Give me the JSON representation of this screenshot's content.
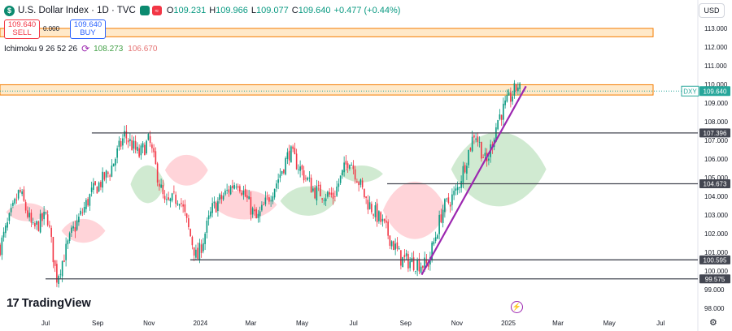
{
  "header": {
    "symbol": "U.S. Dollar Index · 1D · TVC",
    "logo_letter": "$",
    "open_label": "O",
    "open": "109.231",
    "high_label": "H",
    "high": "109.966",
    "low_label": "L",
    "low": "109.077",
    "close_label": "C",
    "close": "109.640",
    "change": "+0.477 (+0.44%)"
  },
  "trade": {
    "sell_price": "109.640",
    "sell_label": "SELL",
    "spread": "0.000",
    "buy_price": "109.640",
    "buy_label": "BUY"
  },
  "indicator": {
    "name": "Ichimoku 9 26 52 26",
    "value_a": "108.273",
    "value_b": "106.670",
    "icon": "cycle-icon"
  },
  "currency_button": "USD",
  "brand": {
    "name": "TradingView",
    "mark": "17"
  },
  "colors": {
    "up": "#089981",
    "down": "#f23645",
    "cloud_up": "#c8e6c9",
    "cloud_down": "#ffcdd2",
    "zone_fill": "#ffe0b2",
    "zone_border": "#f57c00",
    "trendline": "#9c27b0",
    "level_line": "#434651",
    "last_price": "#26a69a"
  },
  "chart_data": {
    "type": "candlestick",
    "title": "U.S. Dollar Index",
    "ylim": [
      97.4,
      114.4
    ],
    "y_ticks": [
      "113.000",
      "112.000",
      "111.000",
      "110.000",
      "109.000",
      "108.000",
      "107.000",
      "106.000",
      "105.000",
      "104.000",
      "103.000",
      "102.000",
      "101.000",
      "100.000",
      "99.000",
      "98.000"
    ],
    "x_ticks": [
      {
        "label": "Jul",
        "date": "2023-07-01"
      },
      {
        "label": "Sep",
        "date": "2023-09-01"
      },
      {
        "label": "Nov",
        "date": "2023-11-01"
      },
      {
        "label": "2024",
        "date": "2024-01-01"
      },
      {
        "label": "Mar",
        "date": "2024-03-01"
      },
      {
        "label": "May",
        "date": "2024-05-01"
      },
      {
        "label": "Jul",
        "date": "2024-07-01"
      },
      {
        "label": "Sep",
        "date": "2024-09-01"
      },
      {
        "label": "Nov",
        "date": "2024-11-01"
      },
      {
        "label": "2025",
        "date": "2025-01-01"
      },
      {
        "label": "Mar",
        "date": "2025-03-01"
      },
      {
        "label": "May",
        "date": "2025-05-01"
      },
      {
        "label": "Jul",
        "date": "2025-07-01"
      }
    ],
    "close_path": [
      [
        "2023-05-08",
        101.3
      ],
      [
        "2023-05-31",
        104.3
      ],
      [
        "2023-06-16",
        102.2
      ],
      [
        "2023-07-03",
        103.0
      ],
      [
        "2023-07-14",
        99.6
      ],
      [
        "2023-08-01",
        102.0
      ],
      [
        "2023-08-25",
        104.2
      ],
      [
        "2023-09-15",
        105.3
      ],
      [
        "2023-10-03",
        107.3
      ],
      [
        "2023-10-20",
        106.2
      ],
      [
        "2023-11-01",
        107.0
      ],
      [
        "2023-11-20",
        103.5
      ],
      [
        "2023-12-07",
        104.0
      ],
      [
        "2023-12-28",
        100.6
      ],
      [
        "2024-01-15",
        103.3
      ],
      [
        "2024-02-14",
        104.9
      ],
      [
        "2024-03-08",
        102.7
      ],
      [
        "2024-04-01",
        104.8
      ],
      [
        "2024-04-16",
        106.4
      ],
      [
        "2024-05-15",
        104.3
      ],
      [
        "2024-06-07",
        104.0
      ],
      [
        "2024-06-26",
        106.1
      ],
      [
        "2024-07-16",
        103.8
      ],
      [
        "2024-08-05",
        102.5
      ],
      [
        "2024-08-27",
        100.6
      ],
      [
        "2024-09-27",
        100.3
      ],
      [
        "2024-10-15",
        103.3
      ],
      [
        "2024-11-01",
        104.3
      ],
      [
        "2024-11-22",
        107.5
      ],
      [
        "2024-12-06",
        105.7
      ],
      [
        "2024-12-20",
        108.2
      ],
      [
        "2025-01-13",
        110.0
      ],
      [
        "2025-01-15",
        109.64
      ]
    ],
    "ichimoku_cloud": [
      {
        "from": "2023-05-15",
        "to": "2023-07-05",
        "top": 103.8,
        "bottom": 102.5,
        "polarity": "bearish"
      },
      {
        "from": "2023-07-20",
        "to": "2023-09-10",
        "top": 103.0,
        "bottom": 101.3,
        "polarity": "bearish"
      },
      {
        "from": "2023-10-10",
        "to": "2023-11-20",
        "top": 106.0,
        "bottom": 103.3,
        "polarity": "bullish"
      },
      {
        "from": "2023-11-20",
        "to": "2024-01-10",
        "top": 106.5,
        "bottom": 104.3,
        "polarity": "bearish"
      },
      {
        "from": "2024-01-15",
        "to": "2024-04-01",
        "top": 104.6,
        "bottom": 102.5,
        "polarity": "bearish"
      },
      {
        "from": "2024-04-05",
        "to": "2024-06-10",
        "top": 104.8,
        "bottom": 102.7,
        "polarity": "bullish"
      },
      {
        "from": "2024-06-15",
        "to": "2024-08-05",
        "top": 105.8,
        "bottom": 104.6,
        "polarity": "bullish"
      },
      {
        "from": "2024-08-05",
        "to": "2024-10-20",
        "top": 105.3,
        "bottom": 101.2,
        "polarity": "bearish"
      },
      {
        "from": "2024-10-25",
        "to": "2025-02-15",
        "top": 108.1,
        "bottom": 102.8,
        "polarity": "bullish"
      }
    ],
    "supply_zones": [
      {
        "top": 113.0,
        "bottom": 112.55
      },
      {
        "top": 109.98,
        "bottom": 109.43
      }
    ],
    "horizontal_levels": [
      {
        "value": 107.396,
        "label": "107.396",
        "from": "2023-08-25"
      },
      {
        "value": 104.673,
        "label": "104.673",
        "from": "2024-08-10"
      },
      {
        "value": 100.595,
        "label": "100.595",
        "from": "2023-12-20"
      },
      {
        "value": 99.575,
        "label": "99.575",
        "from": "2023-07-01"
      }
    ],
    "trendline": {
      "from": [
        "2024-09-20",
        99.8
      ],
      "to": [
        "2025-01-22",
        109.9
      ]
    },
    "last_price": {
      "symbol": "DXY",
      "value": "109.640"
    }
  }
}
